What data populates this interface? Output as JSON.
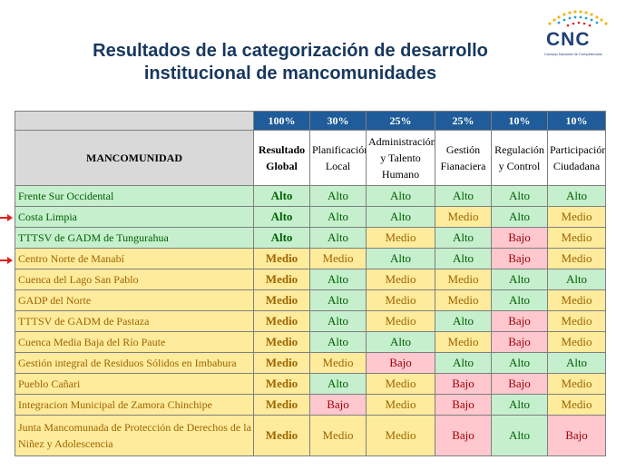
{
  "title": {
    "line1": "Resultados de la categorización de desarrollo",
    "line2": "institucional de mancomunidades"
  },
  "logo": {
    "name": "CNC",
    "subtitle": "Consejo Nacional de Competencias"
  },
  "table": {
    "weights": [
      "100%",
      "30%",
      "25%",
      "25%",
      "10%",
      "10%"
    ],
    "header": {
      "name_col": "MANCOMUNIDAD",
      "columns": [
        [
          "Resultado",
          "Global"
        ],
        [
          "Planificación",
          "Local"
        ],
        [
          "Administración",
          "y Talento",
          "Humano"
        ],
        [
          "Gestión",
          "Fianaciera"
        ],
        [
          "Regulación",
          "y Control"
        ],
        [
          "Participación",
          "Ciudadana"
        ]
      ]
    },
    "rows": [
      {
        "name": "Frente Sur Occidental",
        "values": [
          "Alto",
          "Alto",
          "Alto",
          "Alto",
          "Alto",
          "Alto"
        ]
      },
      {
        "name": "Costa Limpia",
        "values": [
          "Alto",
          "Alto",
          "Alto",
          "Medio",
          "Alto",
          "Medio"
        ]
      },
      {
        "name": "TTTSV de GADM de Tungurahua",
        "values": [
          "Alto",
          "Alto",
          "Medio",
          "Alto",
          "Bajo",
          "Medio"
        ]
      },
      {
        "name": "Centro Norte de Manabí",
        "values": [
          "Medio",
          "Medio",
          "Alto",
          "Alto",
          "Bajo",
          "Medio"
        ]
      },
      {
        "name": "Cuenca del Lago San Pablo",
        "values": [
          "Medio",
          "Alto",
          "Medio",
          "Medio",
          "Alto",
          "Alto"
        ]
      },
      {
        "name": "GADP del Norte",
        "values": [
          "Medio",
          "Alto",
          "Medio",
          "Medio",
          "Alto",
          "Medio"
        ]
      },
      {
        "name": "TTTSV de GADM de Pastaza",
        "values": [
          "Medio",
          "Alto",
          "Medio",
          "Alto",
          "Bajo",
          "Medio"
        ]
      },
      {
        "name": "Cuenca Media Baja del Río Paute",
        "values": [
          "Medio",
          "Alto",
          "Alto",
          "Medio",
          "Bajo",
          "Medio"
        ]
      },
      {
        "name": "Gestión integral de Residuos Sólidos en Imbabura",
        "values": [
          "Medio",
          "Medio",
          "Bajo",
          "Alto",
          "Alto",
          "Alto"
        ]
      },
      {
        "name": "Pueblo Cañari",
        "values": [
          "Medio",
          "Alto",
          "Medio",
          "Bajo",
          "Bajo",
          "Medio"
        ]
      },
      {
        "name": "Integracion Municipal de Zamora Chinchipe",
        "values": [
          "Medio",
          "Bajo",
          "Medio",
          "Bajo",
          "Alto",
          "Medio"
        ]
      },
      {
        "name": "Junta Mancomunada de Protección de Derechos de la Niñez y Adolescencia",
        "values": [
          "Medio",
          "Medio",
          "Medio",
          "Bajo",
          "Alto",
          "Bajo"
        ]
      }
    ],
    "highlighted_rows": [
      1,
      3
    ]
  },
  "colors": {
    "Alto": "#c6efce",
    "Medio": "#ffeb9c",
    "Bajo": "#ffc7ce",
    "header_blue": "#1f5c99",
    "title": "#17375e",
    "arrow": "#e0201b"
  },
  "icons": {
    "arrow": "right-arrow-icon"
  }
}
